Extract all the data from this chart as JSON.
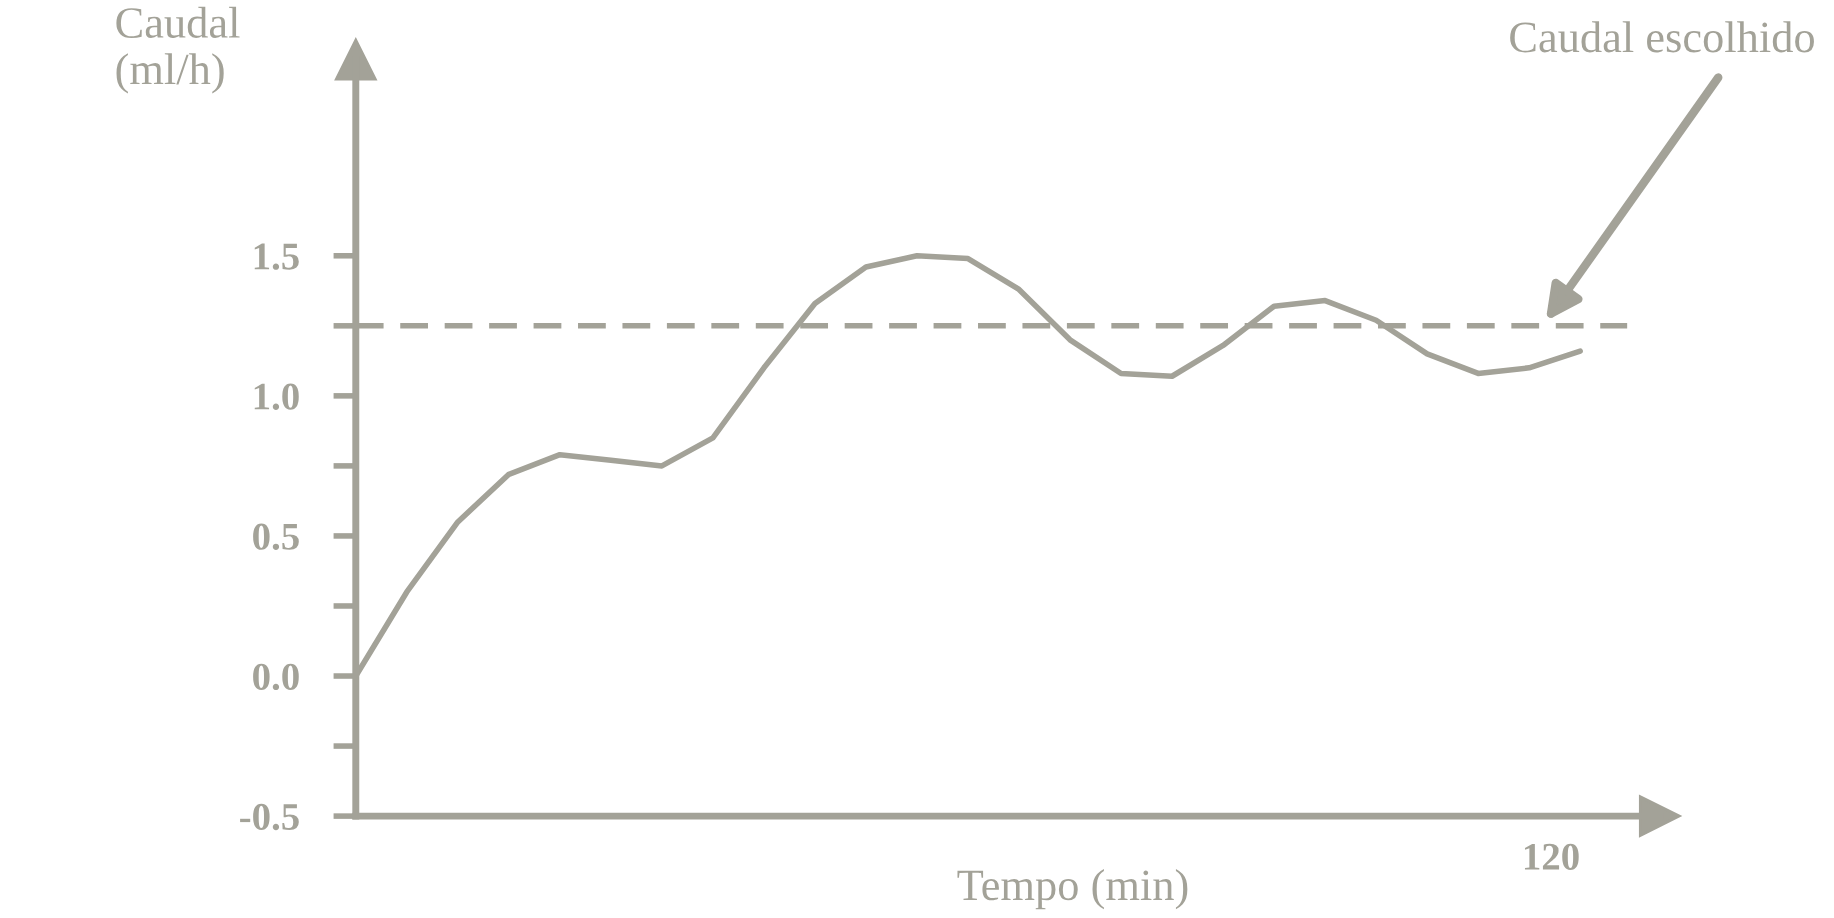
{
  "chart_data": {
    "type": "line",
    "xlabel": "Tempo (min)",
    "ylabel": "Caudal\n(ml/h)",
    "categories": [
      null,
      null,
      null,
      null,
      null,
      null,
      null,
      null,
      null,
      null,
      null,
      null,
      null,
      null,
      null,
      null,
      null,
      null,
      null,
      null,
      null,
      null,
      null,
      null,
      null
    ],
    "series": [
      {
        "color": "#a3a298",
        "values": [
          0,
          0.3,
          0.55,
          0.72,
          0.79,
          0.77,
          0.75,
          0.85,
          1.1,
          1.33,
          1.46,
          1.5,
          1.49,
          1.38,
          1.2,
          1.08,
          1.07,
          1.18,
          1.32,
          1.34,
          1.27,
          1.15,
          1.08,
          1.1,
          1.16
        ]
      }
    ],
    "ylim": [
      -0.5,
      2.2
    ],
    "yticks": [
      {
        "value": -0.5,
        "label": "-0.5"
      },
      {
        "value": -0.25,
        "label": null
      },
      {
        "value": 0,
        "label": "0.0"
      },
      {
        "value": 0.25,
        "label": null
      },
      {
        "value": 0.5,
        "label": "0.5"
      },
      {
        "value": 0.75,
        "label": null
      },
      {
        "value": 1,
        "label": "1.0"
      },
      {
        "value": 1.25,
        "label": null
      },
      {
        "value": 1.5,
        "label": "1.5"
      }
    ],
    "annotations": [
      "120"
    ],
    "ref_lines": [
      {
        "axis": "y",
        "value": 1.25,
        "label": "Caudal escolhido",
        "color": "#a3a298",
        "line_style": "dashed"
      }
    ],
    "grid": false,
    "legend": false,
    "marker": "none",
    "line_style": "solid",
    "tick_labels": "y"
  }
}
